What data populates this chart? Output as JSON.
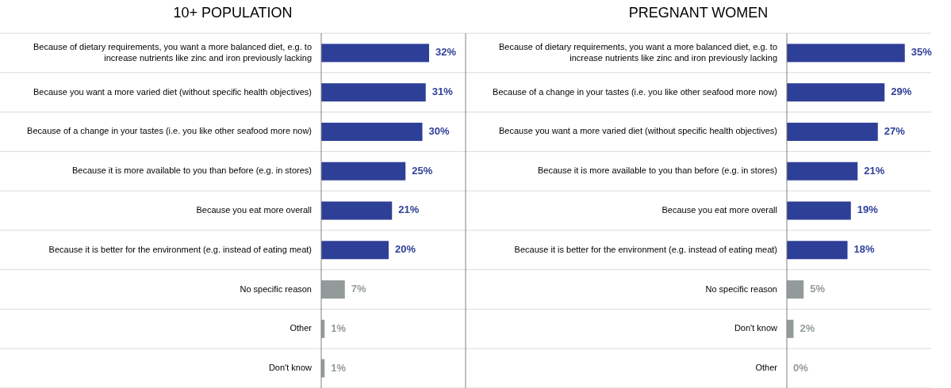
{
  "chart_data": [
    {
      "type": "bar",
      "orientation": "horizontal",
      "title": "10+ POPULATION",
      "categories": [
        "Because of dietary requirements, you want a more balanced diet, e.g. to increase nutrients like zinc and iron previously lacking",
        "Because you want a more varied diet (without specific health objectives)",
        "Because of a change in your tastes (i.e. you like other seafood more now)",
        "Because it is more available to you than before (e.g. in stores)",
        "Because you eat more overall",
        "Because it is better for the environment (e.g. instead of eating meat)",
        "No specific reason",
        "Other",
        "Don't know"
      ],
      "values": [
        32,
        31,
        30,
        25,
        21,
        20,
        7,
        1,
        1
      ],
      "colors": [
        "#2e3f97",
        "#2e3f97",
        "#2e3f97",
        "#2e3f97",
        "#2e3f97",
        "#2e3f97",
        "#939a9a",
        "#939a9a",
        "#939a9a"
      ],
      "value_labels": [
        "32%",
        "31%",
        "30%",
        "25%",
        "21%",
        "20%",
        "7%",
        "1%",
        "1%"
      ],
      "grid": "y"
    },
    {
      "type": "bar",
      "orientation": "horizontal",
      "title": "PREGNANT WOMEN",
      "categories": [
        "Because of dietary requirements, you want a more balanced diet, e.g. to increase nutrients like zinc and iron previously lacking",
        "Because of a change in your tastes (i.e. you like other seafood more now)",
        "Because you want a more varied diet (without specific health objectives)",
        "Because it is more available to you than before (e.g. in stores)",
        "Because you eat more overall",
        "Because it is better for the environment (e.g. instead of eating meat)",
        "No specific reason",
        "Don't know",
        "Other"
      ],
      "values": [
        35,
        29,
        27,
        21,
        19,
        18,
        5,
        2,
        0
      ],
      "colors": [
        "#2e3f97",
        "#2e3f97",
        "#2e3f97",
        "#2e3f97",
        "#2e3f97",
        "#2e3f97",
        "#939a9a",
        "#939a9a",
        "#939a9a"
      ],
      "value_labels": [
        "35%",
        "29%",
        "27%",
        "21%",
        "19%",
        "18%",
        "5%",
        "2%",
        "0%"
      ],
      "grid": "y"
    }
  ]
}
